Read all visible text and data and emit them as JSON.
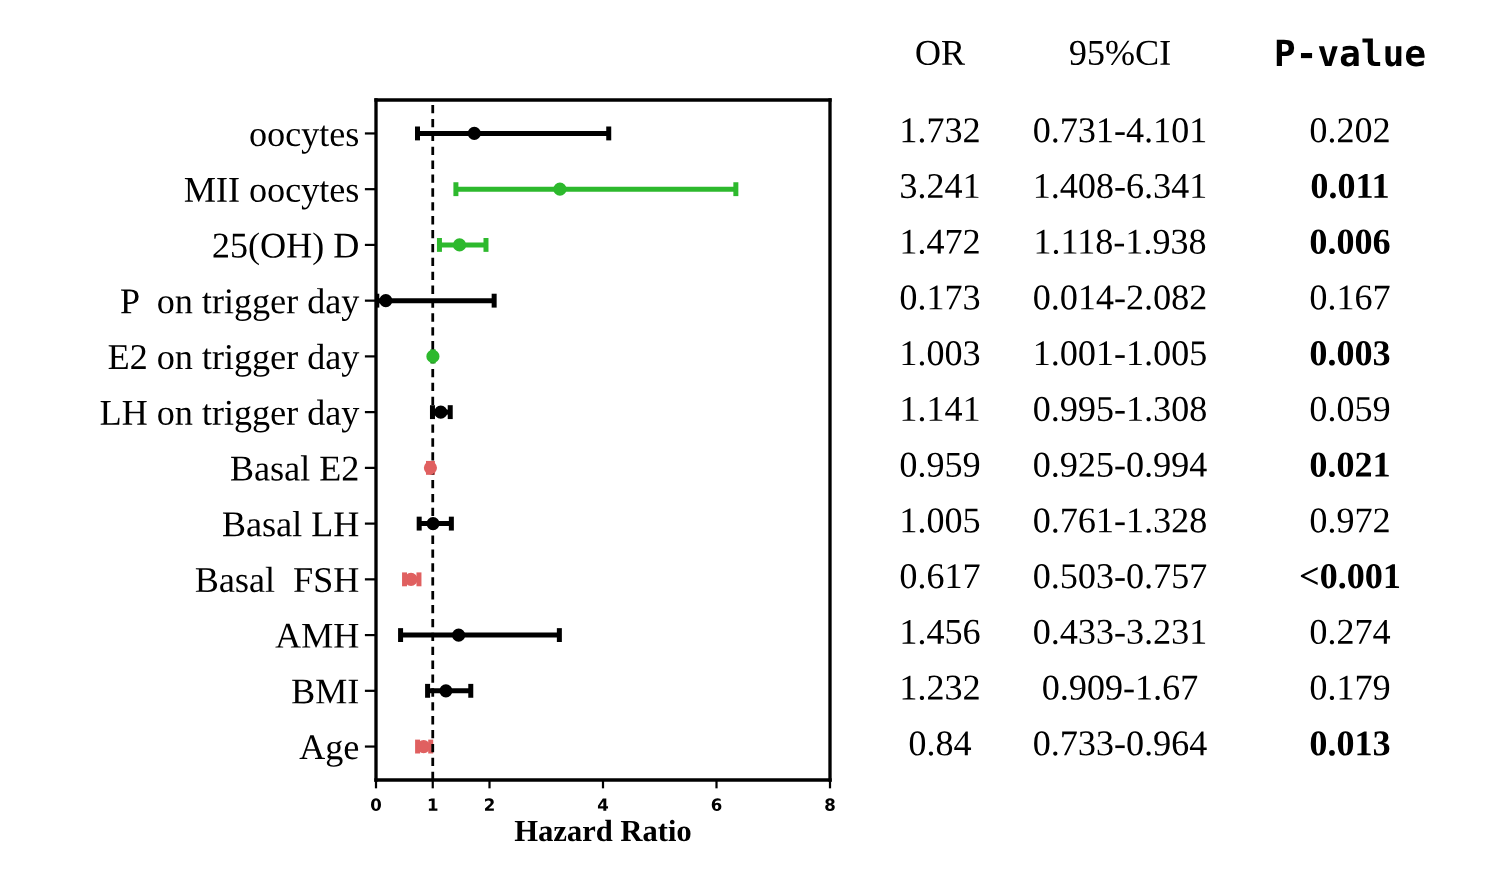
{
  "chart_data": {
    "type": "scatter",
    "orientation": "horizontal",
    "xlabel": "Hazard Ratio",
    "categories": [
      "oocytes",
      "MII oocytes",
      "25(OH) D",
      "P  on trigger day",
      "E2 on trigger day",
      "LH on trigger day",
      "Basal E2",
      "Basal LH",
      "Basal  FSH",
      "AMH",
      "BMI",
      "Age"
    ],
    "values": [
      1.732,
      3.241,
      1.472,
      0.173,
      1.003,
      1.141,
      0.959,
      1.005,
      0.617,
      1.456,
      1.232,
      0.84
    ],
    "errors": [
      [
        0.731,
        4.101
      ],
      [
        1.408,
        6.341
      ],
      [
        1.118,
        1.938
      ],
      [
        0.014,
        2.082
      ],
      [
        1.001,
        1.005
      ],
      [
        0.995,
        1.308
      ],
      [
        0.925,
        0.994
      ],
      [
        0.761,
        1.328
      ],
      [
        0.503,
        0.757
      ],
      [
        0.433,
        3.231
      ],
      [
        0.909,
        1.67
      ],
      [
        0.733,
        0.964
      ]
    ],
    "colors": [
      "#000000",
      "#2db92d",
      "#2db92d",
      "#000000",
      "#2db92d",
      "#000000",
      "#e06060",
      "#000000",
      "#e06060",
      "#000000",
      "#000000",
      "#e06060"
    ],
    "data_labels": true,
    "annotations": [
      "OR",
      "95%CI",
      "P-value",
      "0.731-4.101",
      "1.408-6.341",
      "1.118-1.938",
      "0.014-2.082",
      "1.001-1.005",
      "0.995-1.308",
      "0.925-0.994",
      "0.761-1.328",
      "0.503-0.757",
      "0.433-3.231",
      "0.909-1.67",
      "0.733-0.964",
      "0.202",
      "0.011",
      "0.006",
      "0.167",
      "0.003",
      "0.059",
      "0.021",
      "0.972",
      "<0.001",
      "0.274",
      "0.179",
      "0.013"
    ],
    "ref_lines": [
      {
        "axis": "x",
        "value": 1,
        "line_style": "dashed",
        "color": "#000000"
      }
    ],
    "xlim": [
      0,
      8
    ],
    "xticks": [
      0,
      1,
      2,
      4,
      6,
      8
    ],
    "marker": "circle",
    "grid": false,
    "legend": false
  }
}
